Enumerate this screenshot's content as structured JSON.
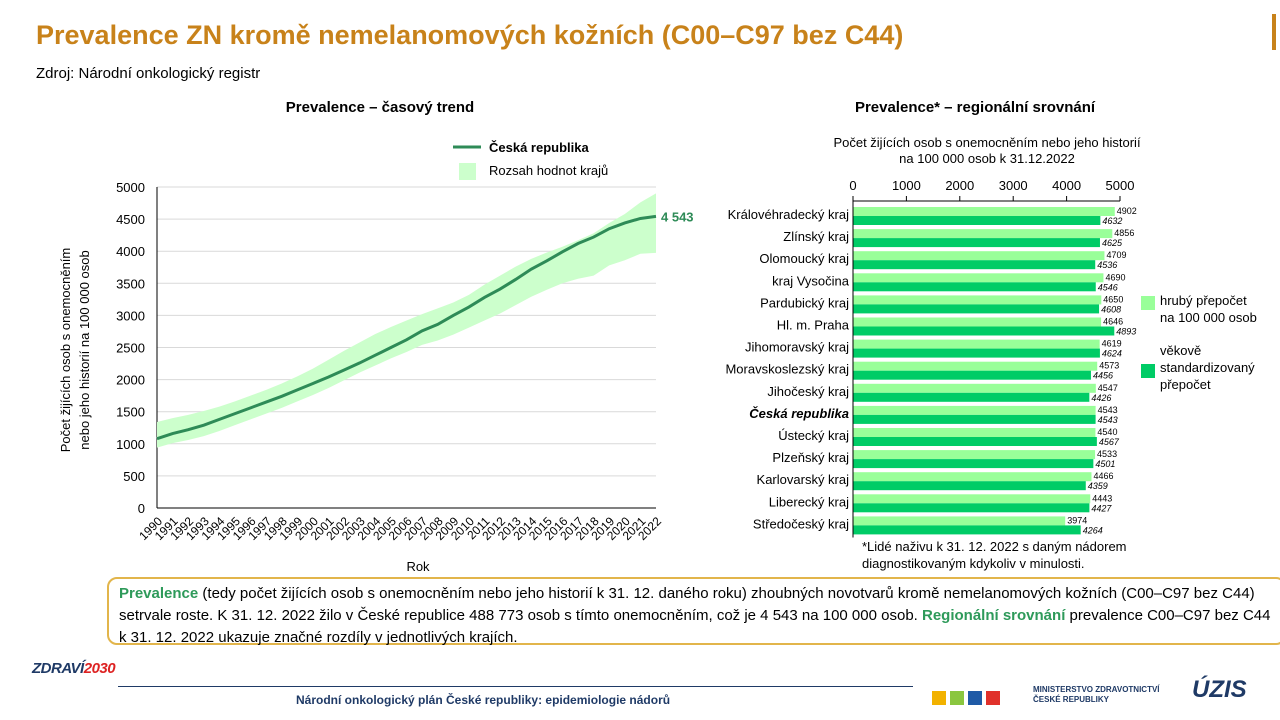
{
  "header": {
    "title": "Prevalence ZN kromě nemelanomových kožních (C00–C97 bez C44)",
    "source": "Zdroj: Národní onkologický registr"
  },
  "chart_data": [
    {
      "type": "line",
      "title": "Prevalence – časový trend",
      "xlabel": "Rok",
      "ylabel": [
        "Počet žijících osob s onemocněním",
        "nebo jeho historií na 100 000 osob"
      ],
      "ylim": [
        0,
        5000
      ],
      "yticks": [
        "0",
        "500",
        "1000",
        "1500",
        "2000",
        "2500",
        "3000",
        "3500",
        "4000",
        "4500",
        "5000"
      ],
      "x": [
        "1990",
        "1991",
        "1992",
        "1993",
        "1994",
        "1995",
        "1996",
        "1997",
        "1998",
        "1999",
        "2000",
        "2001",
        "2002",
        "2003",
        "2004",
        "2005",
        "2006",
        "2007",
        "2008",
        "2009",
        "2010",
        "2011",
        "2012",
        "2013",
        "2014",
        "2015",
        "2016",
        "2017",
        "2018",
        "2019",
        "2020",
        "2021",
        "2022"
      ],
      "series": [
        {
          "name": "Česká republika",
          "values": [
            1080,
            1160,
            1220,
            1290,
            1380,
            1470,
            1560,
            1650,
            1740,
            1840,
            1940,
            2040,
            2150,
            2260,
            2380,
            2500,
            2620,
            2760,
            2860,
            3000,
            3130,
            3280,
            3410,
            3560,
            3720,
            3850,
            3990,
            4120,
            4220,
            4350,
            4440,
            4510,
            4543
          ]
        },
        {
          "name": "Rozsah hodnot krajů",
          "upper": [
            1340,
            1400,
            1450,
            1510,
            1580,
            1660,
            1750,
            1840,
            1940,
            2050,
            2170,
            2310,
            2450,
            2580,
            2710,
            2820,
            2920,
            3020,
            3110,
            3200,
            3320,
            3480,
            3620,
            3760,
            3880,
            3980,
            4070,
            4170,
            4280,
            4440,
            4580,
            4760,
            4900
          ],
          "lower": [
            940,
            1010,
            1060,
            1120,
            1200,
            1290,
            1380,
            1470,
            1560,
            1660,
            1760,
            1870,
            1990,
            2110,
            2220,
            2330,
            2430,
            2540,
            2610,
            2700,
            2810,
            2920,
            3030,
            3160,
            3290,
            3400,
            3500,
            3570,
            3620,
            3780,
            3860,
            3960,
            3974
          ]
        }
      ],
      "end_label": "4 543",
      "colors": {
        "line": "#2e8b57",
        "band": "#ccffcc"
      }
    },
    {
      "type": "bar",
      "title": "Prevalence* – regionální srovnání",
      "axis_caption": [
        "Počet žijících osob s onemocněním  nebo jeho historií",
        "na 100 000 osob k 31.12.2022"
      ],
      "xlim": [
        0,
        5000
      ],
      "xticks": [
        "0",
        "1000",
        "2000",
        "3000",
        "4000",
        "5000"
      ],
      "categories": [
        "Královéhradecký kraj",
        "Zlínský kraj",
        "Olomoucký kraj",
        "kraj Vysočina",
        "Pardubický kraj",
        "Hl. m. Praha",
        "Jihomoravský kraj",
        "Moravskoslezský kraj",
        "Jihočeský kraj",
        "Česká republika",
        "Ústecký kraj",
        "Plzeňský kraj",
        "Karlovarský kraj",
        "Liberecký kraj",
        "Středočeský kraj"
      ],
      "series": [
        {
          "name": "hrubý přepočet na 100 000 osob",
          "values": [
            4902,
            4856,
            4709,
            4690,
            4650,
            4646,
            4619,
            4573,
            4547,
            4543,
            4540,
            4533,
            4466,
            4443,
            3974
          ],
          "labels": [
            "4902",
            "4856",
            "4709",
            "4690",
            "4650",
            "4646",
            "4619",
            "4573",
            "4547",
            "4543",
            "4540",
            "4533",
            "4466",
            "4443",
            "3974"
          ]
        },
        {
          "name": "věkově standardizovaný přepočet",
          "values": [
            4632,
            4625,
            4536,
            4546,
            4608,
            4893,
            4624,
            4456,
            4426,
            4543,
            4567,
            4501,
            4359,
            4427,
            4264
          ],
          "labels": [
            "4632",
            "4625",
            "4536",
            "4546",
            "4608",
            "4893",
            "4624",
            "4456",
            "4426",
            "4543",
            "4567",
            "4501",
            "4359",
            "4427",
            "4264"
          ]
        }
      ],
      "legend": [
        "hrubý přepočet",
        "na 100 000 osob",
        "věkově",
        "standardizovaný",
        "přepočet"
      ],
      "colors": {
        "raw": "#99ff99",
        "std": "#00cc66"
      }
    }
  ],
  "note": [
    "*Lidé naživu k 31. 12. 2022 s daným nádorem",
    "diagnostikovaným kdykoliv v minulosti."
  ],
  "summary": {
    "hl1": "Prevalence",
    "text1": " (tedy počet žijících osob s onemocněním nebo jeho historií k 31. 12. daného roku) zhoubných novotvarů kromě nemelanomových kožních (C00–C97 bez C44) setrvale roste. K 31. 12. 2022 žilo v České republice 488 773 osob s tímto onemocněním, což je 4 543 na 100 000 osob. ",
    "hl2": "Regionální srovnání",
    "text2": " prevalence C00–C97 bez C44 k 31. 12. 2022 ukazuje značné rozdíly v jednotlivých krajích."
  },
  "footer": {
    "text": "Národní onkologický plán České republiky: epidemiologie nádorů",
    "logo_left_a": "ZDRAVÍ",
    "logo_left_b": "2030",
    "ministry_1": "MINISTERSTVO ZDRAVOTNICTVÍ",
    "ministry_2": "ČESKÉ REPUBLIKY",
    "uzis": "ÚZIS"
  }
}
